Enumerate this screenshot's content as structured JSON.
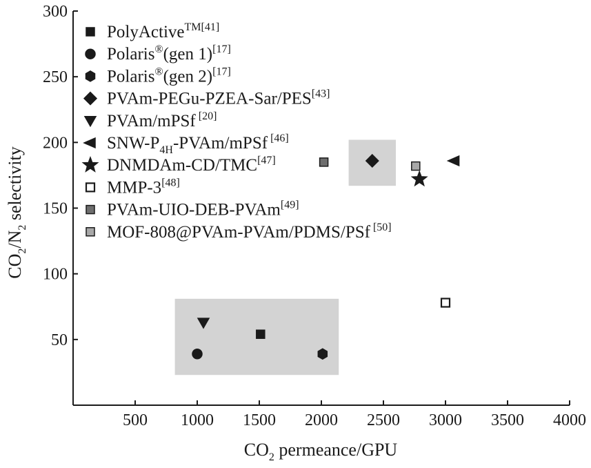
{
  "chart_data": {
    "type": "scatter",
    "title": "",
    "xlabel": {
      "main": "CO",
      "sub": "2",
      "rest": " permeance/GPU"
    },
    "ylabel": {
      "a": "CO",
      "a_sub": "2",
      "b": "/N",
      "b_sub": "2",
      "c": " selectivity"
    },
    "xlim": [
      0,
      4000
    ],
    "ylim": [
      0,
      300
    ],
    "x_ticks": [
      "500",
      "1000",
      "1500",
      "2000",
      "2500",
      "3000",
      "3500",
      "4000"
    ],
    "y_ticks": [
      "50",
      "100",
      "150",
      "200",
      "250",
      "300"
    ],
    "x_tick_values": [
      500,
      1000,
      1500,
      2000,
      2500,
      3000,
      3500,
      4000
    ],
    "y_tick_values": [
      50,
      100,
      150,
      200,
      250,
      300
    ],
    "grid": false,
    "legend_position": "top-left",
    "highlight_regions": [
      {
        "x": [
          820,
          2140
        ],
        "y": [
          23,
          81
        ],
        "color": "#d3d3d3"
      },
      {
        "x": [
          2220,
          2600
        ],
        "y": [
          167,
          202
        ],
        "color": "#d3d3d3"
      }
    ],
    "series": [
      {
        "name": "PolyActive",
        "sup": "TM[41]",
        "marker": "square",
        "fill": "#1a1a1a",
        "stroke": "#1a1a1a",
        "points": [
          [
            1510,
            54
          ]
        ]
      },
      {
        "name": "Polaris",
        "sup": "®",
        "suffix": "(gen 1)",
        "ref": "[17]",
        "marker": "circle",
        "fill": "#1a1a1a",
        "stroke": "#1a1a1a",
        "points": [
          [
            1000,
            39
          ]
        ]
      },
      {
        "name": "Polaris",
        "sup": "®",
        "suffix": "(gen 2)",
        "ref": "[17]",
        "marker": "hexagon",
        "fill": "#1a1a1a",
        "stroke": "#1a1a1a",
        "points": [
          [
            2010,
            39
          ]
        ]
      },
      {
        "name": "PVAm-PEGu-PZEA-Sar/PES",
        "sup": "[43]",
        "marker": "diamond",
        "fill": "#1a1a1a",
        "stroke": "#1a1a1a",
        "points": [
          [
            2410,
            186
          ]
        ]
      },
      {
        "name": "PVAm/mPSf",
        "sup": " [20]",
        "marker": "triangle-down",
        "fill": "#1a1a1a",
        "stroke": "#1a1a1a",
        "points": [
          [
            1050,
            63
          ]
        ]
      },
      {
        "name": "SNW-P",
        "sub": "4H",
        "rest": "-PVAm/mPSf",
        "sup": " [46]",
        "marker": "triangle-left",
        "fill": "#1a1a1a",
        "stroke": "#1a1a1a",
        "points": [
          [
            3070,
            186
          ]
        ]
      },
      {
        "name": "DNMDAm-CD/TMC",
        "sup": "[47]",
        "marker": "star",
        "fill": "#1a1a1a",
        "stroke": "#1a1a1a",
        "points": [
          [
            2790,
            172
          ]
        ]
      },
      {
        "name": "MMP-3",
        "sup": "[48]",
        "marker": "square-open",
        "fill": "#ffffff",
        "stroke": "#1a1a1a",
        "points": [
          [
            3000,
            78
          ]
        ]
      },
      {
        "name": "PVAm-UIO-DEB-PVAm",
        "sup": "[49]",
        "marker": "square",
        "fill": "#6e6e6e",
        "stroke": "#1a1a1a",
        "points": [
          [
            2020,
            185
          ]
        ]
      },
      {
        "name": "MOF-808@PVAm-PVAm/PDMS/PSf",
        "sup": " [50]",
        "marker": "square",
        "fill": "#a8a8a8",
        "stroke": "#1a1a1a",
        "points": [
          [
            2760,
            182
          ]
        ]
      }
    ]
  }
}
